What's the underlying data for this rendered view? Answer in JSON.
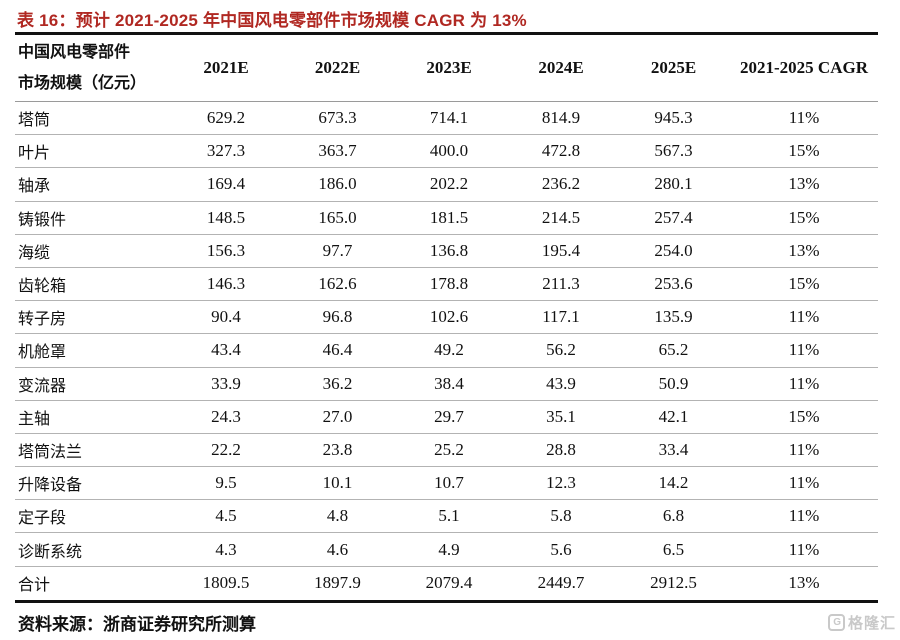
{
  "title": "表 16：预计 2021-2025 年中国风电零部件市场规模 CAGR 为 13%",
  "colors": {
    "title_red": "#b02822",
    "rule_dark": "#111111",
    "rule_light": "#b3b3b3",
    "watermark_gray": "#c9c9c9"
  },
  "table": {
    "header": {
      "label_line1": "中国风电零部件",
      "label_line2": "市场规模（亿元）",
      "year_columns": [
        "2021E",
        "2022E",
        "2023E",
        "2024E",
        "2025E"
      ],
      "cagr_column": "2021-2025 CAGR"
    },
    "rows": [
      {
        "label": "塔筒",
        "values": [
          "629.2",
          "673.3",
          "714.1",
          "814.9",
          "945.3"
        ],
        "cagr": "11%"
      },
      {
        "label": "叶片",
        "values": [
          "327.3",
          "363.7",
          "400.0",
          "472.8",
          "567.3"
        ],
        "cagr": "15%"
      },
      {
        "label": "轴承",
        "values": [
          "169.4",
          "186.0",
          "202.2",
          "236.2",
          "280.1"
        ],
        "cagr": "13%"
      },
      {
        "label": "铸锻件",
        "values": [
          "148.5",
          "165.0",
          "181.5",
          "214.5",
          "257.4"
        ],
        "cagr": "15%"
      },
      {
        "label": "海缆",
        "values": [
          "156.3",
          "97.7",
          "136.8",
          "195.4",
          "254.0"
        ],
        "cagr": "13%"
      },
      {
        "label": "齿轮箱",
        "values": [
          "146.3",
          "162.6",
          "178.8",
          "211.3",
          "253.6"
        ],
        "cagr": "15%"
      },
      {
        "label": "转子房",
        "values": [
          "90.4",
          "96.8",
          "102.6",
          "117.1",
          "135.9"
        ],
        "cagr": "11%"
      },
      {
        "label": "机舱罩",
        "values": [
          "43.4",
          "46.4",
          "49.2",
          "56.2",
          "65.2"
        ],
        "cagr": "11%"
      },
      {
        "label": "变流器",
        "values": [
          "33.9",
          "36.2",
          "38.4",
          "43.9",
          "50.9"
        ],
        "cagr": "11%"
      },
      {
        "label": "主轴",
        "values": [
          "24.3",
          "27.0",
          "29.7",
          "35.1",
          "42.1"
        ],
        "cagr": "15%"
      },
      {
        "label": "塔筒法兰",
        "values": [
          "22.2",
          "23.8",
          "25.2",
          "28.8",
          "33.4"
        ],
        "cagr": "11%"
      },
      {
        "label": "升降设备",
        "values": [
          "9.5",
          "10.1",
          "10.7",
          "12.3",
          "14.2"
        ],
        "cagr": "11%"
      },
      {
        "label": "定子段",
        "values": [
          "4.5",
          "4.8",
          "5.1",
          "5.8",
          "6.8"
        ],
        "cagr": "11%"
      },
      {
        "label": "诊断系统",
        "values": [
          "4.3",
          "4.6",
          "4.9",
          "5.6",
          "6.5"
        ],
        "cagr": "11%"
      }
    ],
    "total_row": {
      "label": "合计",
      "values": [
        "1809.5",
        "1897.9",
        "2079.4",
        "2449.7",
        "2912.5"
      ],
      "cagr": "13%"
    }
  },
  "source": "资料来源：浙商证券研究所测算",
  "watermark": {
    "logo_letter": "G",
    "text": "格隆汇"
  }
}
